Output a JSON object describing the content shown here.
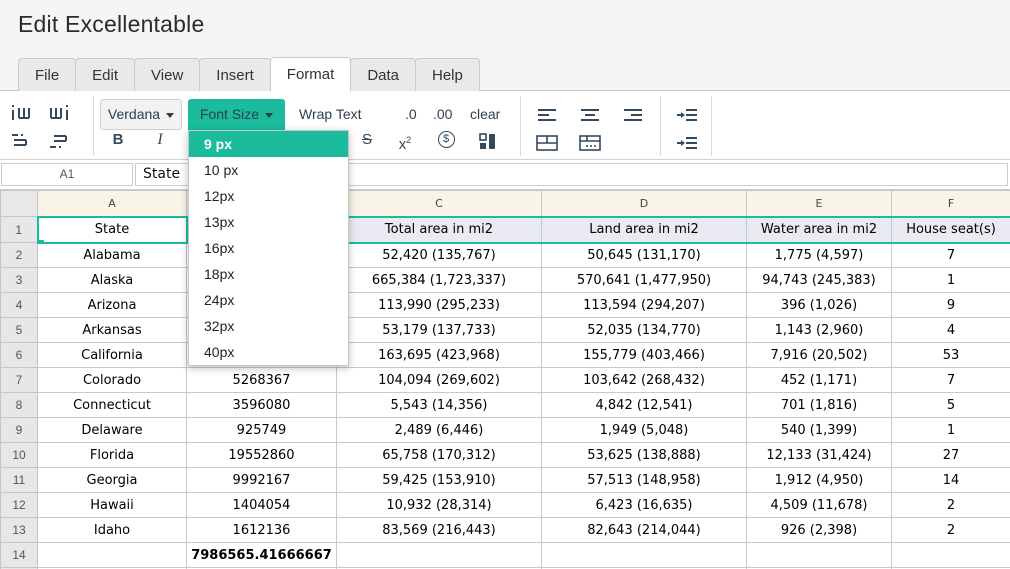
{
  "page_title": "Edit Excellentable",
  "tabs": [
    {
      "label": "File",
      "active": false
    },
    {
      "label": "Edit",
      "active": false
    },
    {
      "label": "View",
      "active": false
    },
    {
      "label": "Insert",
      "active": false
    },
    {
      "label": "Format",
      "active": true
    },
    {
      "label": "Data",
      "active": false
    },
    {
      "label": "Help",
      "active": false
    }
  ],
  "toolbar": {
    "font_button_label": "Verdana",
    "font_size_button_label": "Font Size",
    "wrap_text_label": "Wrap Text",
    "decimal_one_label": ".0",
    "decimal_two_label": ".00",
    "clear_label": "clear",
    "bold_label": "B",
    "italic_label": "I",
    "strikethrough_label": "S",
    "superscript_base": "x",
    "superscript_exp": "2",
    "currency_symbol": "$"
  },
  "font_size_dropdown": {
    "selected": "9 px",
    "options": [
      "9 px",
      "10 px",
      "12px",
      "13px",
      "16px",
      "18px",
      "24px",
      "32px",
      "40px"
    ]
  },
  "formula_bar": {
    "cell_ref": "A1",
    "value": "State"
  },
  "colors": {
    "accent": "#1abc9c",
    "column_header_bg": "#f8f5e6",
    "header_row_bg": "#eaeaf3",
    "grid_line": "#bccdd6"
  },
  "sheet": {
    "column_letters": [
      "A",
      "B",
      "C",
      "D",
      "E",
      "F"
    ],
    "selected_cell": "A1",
    "rows": [
      {
        "n": "1",
        "header": true,
        "cells": [
          "State",
          "",
          "Total area in mi2",
          "Land area in mi2",
          "Water area in mi2",
          "House seat(s)"
        ]
      },
      {
        "n": "2",
        "cells": [
          "Alabama",
          "",
          "52,420 (135,767)",
          "50,645 (131,170)",
          "1,775 (4,597)",
          "7"
        ]
      },
      {
        "n": "3",
        "cells": [
          "Alaska",
          "",
          "665,384 (1,723,337)",
          "570,641 (1,477,950)",
          "94,743 (245,383)",
          "1"
        ]
      },
      {
        "n": "4",
        "cells": [
          "Arizona",
          "",
          "113,990 (295,233)",
          "113,594 (294,207)",
          "396 (1,026)",
          "9"
        ]
      },
      {
        "n": "5",
        "cells": [
          "Arkansas",
          "",
          "53,179 (137,733)",
          "52,035 (134,770)",
          "1,143 (2,960)",
          "4"
        ]
      },
      {
        "n": "6",
        "cells": [
          "California",
          "",
          "163,695 (423,968)",
          "155,779 (403,466)",
          "7,916 (20,502)",
          "53"
        ]
      },
      {
        "n": "7",
        "cells": [
          "Colorado",
          "5268367",
          "104,094 (269,602)",
          "103,642 (268,432)",
          "452 (1,171)",
          "7"
        ]
      },
      {
        "n": "8",
        "cells": [
          "Connecticut",
          "3596080",
          "5,543 (14,356)",
          "4,842 (12,541)",
          "701 (1,816)",
          "5"
        ]
      },
      {
        "n": "9",
        "cells": [
          "Delaware",
          "925749",
          "2,489 (6,446)",
          "1,949 (5,048)",
          "540 (1,399)",
          "1"
        ]
      },
      {
        "n": "10",
        "cells": [
          "Florida",
          "19552860",
          "65,758 (170,312)",
          "53,625 (138,888)",
          "12,133 (31,424)",
          "27"
        ]
      },
      {
        "n": "11",
        "cells": [
          "Georgia",
          "9992167",
          "59,425 (153,910)",
          "57,513 (148,958)",
          "1,912 (4,950)",
          "14"
        ]
      },
      {
        "n": "12",
        "cells": [
          "Hawaii",
          "1404054",
          "10,932 (28,314)",
          "6,423 (16,635)",
          "4,509 (11,678)",
          "2"
        ]
      },
      {
        "n": "13",
        "cells": [
          "Idaho",
          "1612136",
          "83,569 (216,443)",
          "82,643 (214,044)",
          "926 (2,398)",
          "2"
        ]
      },
      {
        "n": "14",
        "cells": [
          "",
          "7986565.41666667",
          "",
          "",
          "",
          ""
        ],
        "bold_cols": [
          1
        ]
      }
    ]
  }
}
